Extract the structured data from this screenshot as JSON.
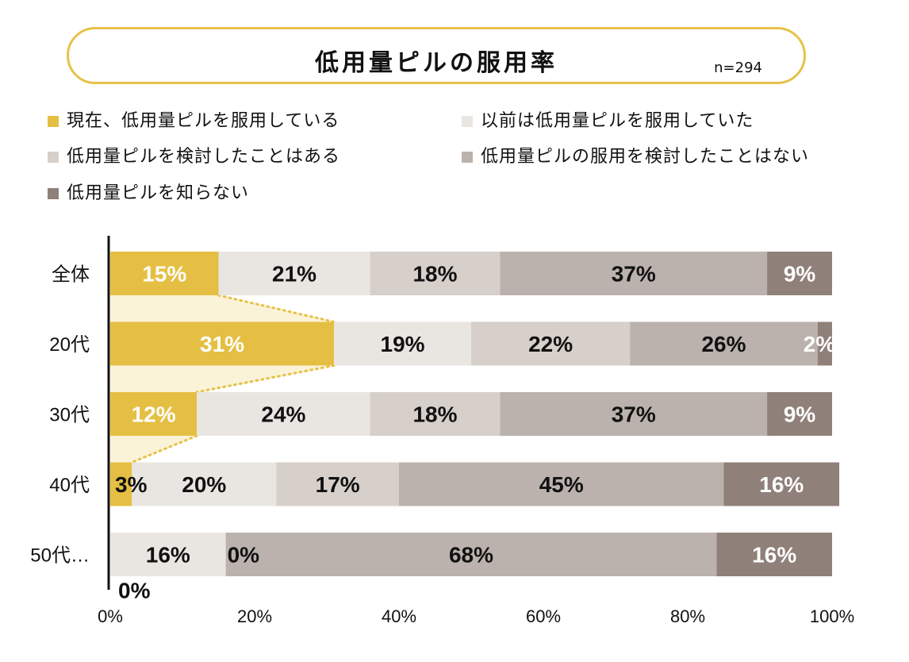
{
  "title": "低用量ピルの服用率",
  "sample_size": "n=294",
  "colors": {
    "accent_border": "#e6c24a",
    "callout_fill": "#fbf3d8",
    "callout_line": "#e6c24a"
  },
  "chart_data": {
    "type": "bar",
    "orientation": "horizontal",
    "stacked": true,
    "categories": [
      "全体",
      "20代",
      "30代",
      "40代",
      "50代…"
    ],
    "series": [
      {
        "name": "現在、低用量ピルを服用している",
        "color": "#e5bf43",
        "values": [
          15,
          31,
          12,
          3,
          0
        ],
        "labels": [
          "15%",
          "31%",
          "12%",
          "3%",
          "0%"
        ],
        "label_color": [
          "#ffffff",
          "#ffffff",
          "#ffffff",
          "#111111",
          "#111111"
        ]
      },
      {
        "name": "以前は低用量ピルを服用していた",
        "color": "#e9e6e2",
        "values": [
          21,
          19,
          24,
          20,
          16
        ],
        "labels": [
          "21%",
          "19%",
          "24%",
          "20%",
          "16%"
        ],
        "label_color": [
          "#111111",
          "#111111",
          "#111111",
          "#111111",
          "#111111"
        ]
      },
      {
        "name": "低用量ピルを検討したことはある",
        "color": "#d6cfca",
        "values": [
          18,
          22,
          18,
          17,
          0
        ],
        "labels": [
          "18%",
          "22%",
          "18%",
          "17%",
          "0%"
        ],
        "label_color": [
          "#111111",
          "#111111",
          "#111111",
          "#111111",
          "#111111"
        ]
      },
      {
        "name": "低用量ピルの服用を検討したことはない",
        "color": "#bbb2ad",
        "values": [
          37,
          26,
          37,
          45,
          68
        ],
        "labels": [
          "37%",
          "26%",
          "37%",
          "45%",
          "68%"
        ],
        "label_color": [
          "#111111",
          "#111111",
          "#111111",
          "#111111",
          "#111111"
        ]
      },
      {
        "name": "低用量ピルを知らない",
        "color": "#8f8079",
        "values": [
          9,
          2,
          9,
          16,
          16
        ],
        "labels": [
          "9%",
          "2%",
          "9%",
          "16%",
          "16%"
        ],
        "label_color": [
          "#ffffff",
          "#ffffff",
          "#ffffff",
          "#ffffff",
          "#ffffff"
        ]
      }
    ],
    "x_ticks": [
      "0%",
      "20%",
      "40%",
      "60%",
      "80%",
      "100%"
    ],
    "xlim": [
      0,
      100
    ],
    "grid": false,
    "legend_position": "top"
  }
}
